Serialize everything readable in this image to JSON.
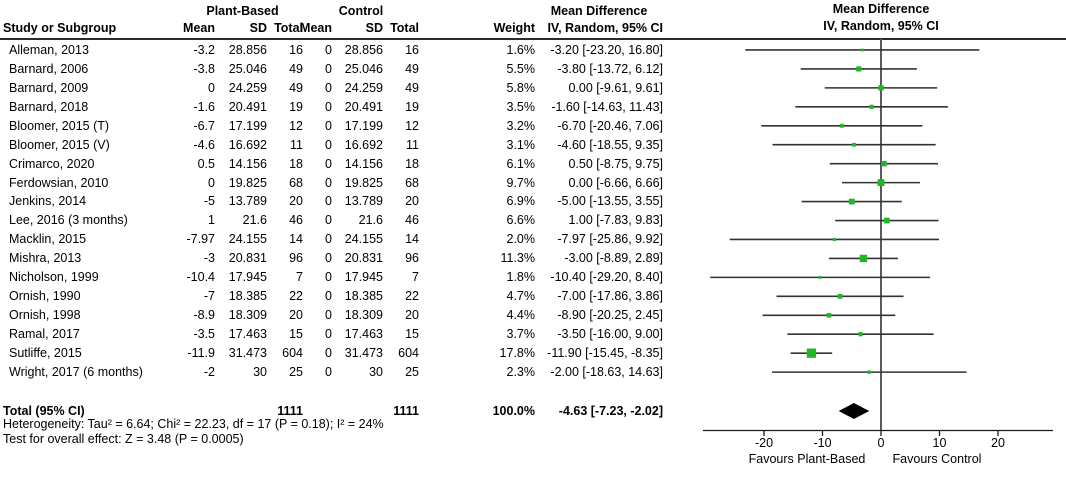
{
  "table": {
    "group1_header": "Plant-Based",
    "group2_header": "Control",
    "effect_header": "Mean Difference",
    "col_headers": [
      "Study or Subgroup",
      "Mean",
      "SD",
      "Total",
      "Mean",
      "SD",
      "Total",
      "Weight",
      "IV, Random, 95% CI"
    ],
    "plot_header_line1": "Mean Difference",
    "plot_header_line2": "IV, Random, 95% CI"
  },
  "chart_data": {
    "type": "forest",
    "effect_measure": "Mean Difference",
    "method": "IV, Random, 95% CI",
    "xlim": [
      -30.4,
      29.4
    ],
    "x_ticks": [
      "-20",
      "-10",
      "0",
      "10",
      "20"
    ],
    "x_tick_values": [
      -20,
      -10,
      0,
      10,
      20
    ],
    "favours_left": "Favours Plant-Based",
    "favours_right": "Favours Control",
    "studies": [
      {
        "name": "Alleman, 2013",
        "mean": "-3.2",
        "sd": "28.856",
        "total": "16",
        "c_mean": "0",
        "c_sd": "28.856",
        "c_total": "16",
        "weight": "1.6%",
        "ci": "-3.20 [-23.20, 16.80]",
        "est": -3.2,
        "lo": -23.2,
        "hi": 16.8,
        "w": 1.6
      },
      {
        "name": "Barnard, 2006",
        "mean": "-3.8",
        "sd": "25.046",
        "total": "49",
        "c_mean": "0",
        "c_sd": "25.046",
        "c_total": "49",
        "weight": "5.5%",
        "ci": "-3.80 [-13.72, 6.12]",
        "est": -3.8,
        "lo": -13.72,
        "hi": 6.12,
        "w": 5.5
      },
      {
        "name": "Barnard, 2009",
        "mean": "0",
        "sd": "24.259",
        "total": "49",
        "c_mean": "0",
        "c_sd": "24.259",
        "c_total": "49",
        "weight": "5.8%",
        "ci": "0.00 [-9.61, 9.61]",
        "est": 0,
        "lo": -9.61,
        "hi": 9.61,
        "w": 5.8
      },
      {
        "name": "Barnard, 2018",
        "mean": "-1.6",
        "sd": "20.491",
        "total": "19",
        "c_mean": "0",
        "c_sd": "20.491",
        "c_total": "19",
        "weight": "3.5%",
        "ci": "-1.60 [-14.63, 11.43]",
        "est": -1.6,
        "lo": -14.63,
        "hi": 11.43,
        "w": 3.5
      },
      {
        "name": "Bloomer, 2015 (T)",
        "mean": "-6.7",
        "sd": "17.199",
        "total": "12",
        "c_mean": "0",
        "c_sd": "17.199",
        "c_total": "12",
        "weight": "3.2%",
        "ci": "-6.70 [-20.46, 7.06]",
        "est": -6.7,
        "lo": -20.46,
        "hi": 7.06,
        "w": 3.2
      },
      {
        "name": "Bloomer, 2015 (V)",
        "mean": "-4.6",
        "sd": "16.692",
        "total": "11",
        "c_mean": "0",
        "c_sd": "16.692",
        "c_total": "11",
        "weight": "3.1%",
        "ci": "-4.60 [-18.55, 9.35]",
        "est": -4.6,
        "lo": -18.55,
        "hi": 9.35,
        "w": 3.1
      },
      {
        "name": "Crimarco, 2020",
        "mean": "0.5",
        "sd": "14.156",
        "total": "18",
        "c_mean": "0",
        "c_sd": "14.156",
        "c_total": "18",
        "weight": "6.1%",
        "ci": "0.50 [-8.75, 9.75]",
        "est": 0.5,
        "lo": -8.75,
        "hi": 9.75,
        "w": 6.1
      },
      {
        "name": "Ferdowsian, 2010",
        "mean": "0",
        "sd": "19.825",
        "total": "68",
        "c_mean": "0",
        "c_sd": "19.825",
        "c_total": "68",
        "weight": "9.7%",
        "ci": "0.00 [-6.66, 6.66]",
        "est": 0,
        "lo": -6.66,
        "hi": 6.66,
        "w": 9.7
      },
      {
        "name": "Jenkins, 2014",
        "mean": "-5",
        "sd": "13.789",
        "total": "20",
        "c_mean": "0",
        "c_sd": "13.789",
        "c_total": "20",
        "weight": "6.9%",
        "ci": "-5.00 [-13.55, 3.55]",
        "est": -5,
        "lo": -13.55,
        "hi": 3.55,
        "w": 6.9
      },
      {
        "name": "Lee, 2016 (3 months)",
        "mean": "1",
        "sd": "21.6",
        "total": "46",
        "c_mean": "0",
        "c_sd": "21.6",
        "c_total": "46",
        "weight": "6.6%",
        "ci": "1.00 [-7.83, 9.83]",
        "est": 1,
        "lo": -7.83,
        "hi": 9.83,
        "w": 6.6
      },
      {
        "name": "Macklin, 2015",
        "mean": "-7.97",
        "sd": "24.155",
        "total": "14",
        "c_mean": "0",
        "c_sd": "24.155",
        "c_total": "14",
        "weight": "2.0%",
        "ci": "-7.97 [-25.86, 9.92]",
        "est": -7.97,
        "lo": -25.86,
        "hi": 9.92,
        "w": 2.0
      },
      {
        "name": "Mishra, 2013",
        "mean": "-3",
        "sd": "20.831",
        "total": "96",
        "c_mean": "0",
        "c_sd": "20.831",
        "c_total": "96",
        "weight": "11.3%",
        "ci": "-3.00 [-8.89, 2.89]",
        "est": -3,
        "lo": -8.89,
        "hi": 2.89,
        "w": 11.3
      },
      {
        "name": "Nicholson, 1999",
        "mean": "-10.4",
        "sd": "17.945",
        "total": "7",
        "c_mean": "0",
        "c_sd": "17.945",
        "c_total": "7",
        "weight": "1.8%",
        "ci": "-10.40 [-29.20, 8.40]",
        "est": -10.4,
        "lo": -29.2,
        "hi": 8.4,
        "w": 1.8
      },
      {
        "name": "Ornish, 1990",
        "mean": "-7",
        "sd": "18.385",
        "total": "22",
        "c_mean": "0",
        "c_sd": "18.385",
        "c_total": "22",
        "weight": "4.7%",
        "ci": "-7.00 [-17.86, 3.86]",
        "est": -7,
        "lo": -17.86,
        "hi": 3.86,
        "w": 4.7
      },
      {
        "name": "Ornish, 1998",
        "mean": "-8.9",
        "sd": "18.309",
        "total": "20",
        "c_mean": "0",
        "c_sd": "18.309",
        "c_total": "20",
        "weight": "4.4%",
        "ci": "-8.90 [-20.25, 2.45]",
        "est": -8.9,
        "lo": -20.25,
        "hi": 2.45,
        "w": 4.4
      },
      {
        "name": "Ramal, 2017",
        "mean": "-3.5",
        "sd": "17.463",
        "total": "15",
        "c_mean": "0",
        "c_sd": "17.463",
        "c_total": "15",
        "weight": "3.7%",
        "ci": "-3.50 [-16.00, 9.00]",
        "est": -3.5,
        "lo": -16.0,
        "hi": 9.0,
        "w": 3.7
      },
      {
        "name": "Sutliffe, 2015",
        "mean": "-11.9",
        "sd": "31.473",
        "total": "604",
        "c_mean": "0",
        "c_sd": "31.473",
        "c_total": "604",
        "weight": "17.8%",
        "ci": "-11.90 [-15.45, -8.35]",
        "est": -11.9,
        "lo": -15.45,
        "hi": -8.35,
        "w": 17.8
      },
      {
        "name": "Wright, 2017 (6 months)",
        "mean": "-2",
        "sd": "30",
        "total": "25",
        "c_mean": "0",
        "c_sd": "30",
        "c_total": "25",
        "weight": "2.3%",
        "ci": "-2.00 [-18.63, 14.63]",
        "est": -2,
        "lo": -18.63,
        "hi": 14.63,
        "w": 2.3
      }
    ],
    "total": {
      "label": "Total (95% CI)",
      "total": "1111",
      "c_total": "1111",
      "weight": "100.0%",
      "ci": "-4.63 [-7.23, -2.02]",
      "est": -4.63,
      "lo": -7.23,
      "hi": -2.02
    }
  },
  "footer": {
    "heterogeneity": "Heterogeneity: Tau² = 6.64; Chi² = 22.23, df = 17 (P = 0.18); I² = 24%",
    "overall_effect": "Test for overall effect: Z = 3.48 (P = 0.0005)"
  },
  "colors": {
    "square": "#1fb825",
    "diamond": "#000000",
    "ci_line": "#333333",
    "zero_line": "#5a5a5a",
    "axis_line": "#1a1a1a",
    "header_rule": "#2b2b2b"
  }
}
